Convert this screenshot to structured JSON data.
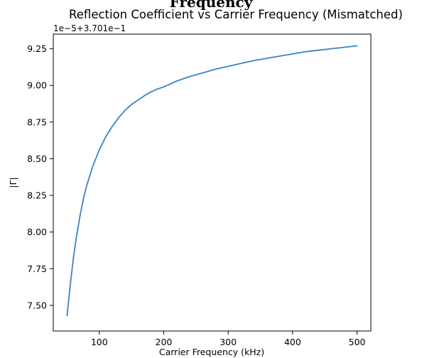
{
  "header": {
    "cutoff_text": "Frequency"
  },
  "chart_data": {
    "type": "line",
    "title": "Reflection Coefficient vs Carrier Frequency (Mismatched)",
    "xlabel": "Carrier Frequency (kHz)",
    "ylabel": "|Γ|",
    "y_offset_label": "1e−5+3.701e−1",
    "xlim": [
      28.6,
      521.4
    ],
    "ylim": [
      7.325,
      9.35
    ],
    "x_ticks": [
      100,
      200,
      300,
      400,
      500
    ],
    "x_tick_labels": [
      "100",
      "200",
      "300",
      "400",
      "500"
    ],
    "y_ticks": [
      7.5,
      7.75,
      8.0,
      8.25,
      8.5,
      8.75,
      9.0,
      9.25
    ],
    "y_tick_labels": [
      "7.50",
      "7.75",
      "8.00",
      "8.25",
      "8.50",
      "8.75",
      "9.00",
      "9.25"
    ],
    "grid": false,
    "series": [
      {
        "color": "#3b82c4",
        "x": [
          50,
          55,
          60,
          65,
          70,
          75,
          80,
          90,
          100,
          110,
          120,
          130,
          140,
          150,
          160,
          170,
          180,
          190,
          200,
          220,
          240,
          260,
          280,
          300,
          320,
          340,
          360,
          380,
          400,
          420,
          440,
          460,
          480,
          500
        ],
        "y": [
          7.43,
          7.64,
          7.83,
          7.98,
          8.11,
          8.22,
          8.31,
          8.45,
          8.56,
          8.65,
          8.72,
          8.78,
          8.83,
          8.87,
          8.9,
          8.93,
          8.955,
          8.975,
          8.99,
          9.03,
          9.06,
          9.085,
          9.11,
          9.13,
          9.15,
          9.17,
          9.185,
          9.2,
          9.215,
          9.23,
          9.24,
          9.25,
          9.26,
          9.27
        ]
      }
    ]
  }
}
